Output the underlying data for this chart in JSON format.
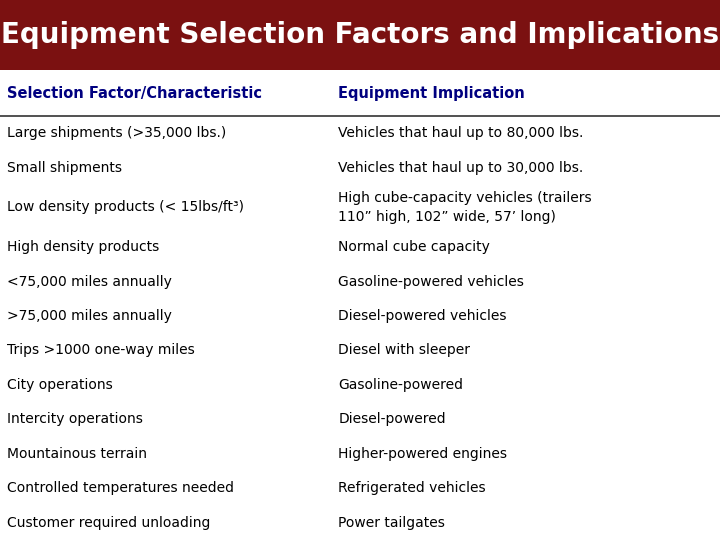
{
  "title": "Equipment Selection Factors and Implications",
  "title_bg": "#7B1111",
  "title_color": "#FFFFFF",
  "header_col1": "Selection Factor/Characteristic",
  "header_col2": "Equipment Implication",
  "header_color": "#000080",
  "rows": [
    [
      "Large shipments (>35,000 lbs.)",
      "Vehicles that haul up to 80,000 lbs."
    ],
    [
      "Small shipments",
      "Vehicles that haul up to 30,000 lbs."
    ],
    [
      "Low density products (< 15lbs/ft³)",
      "High cube-capacity vehicles (trailers\n110” high, 102” wide, 57’ long)"
    ],
    [
      "High density products",
      "Normal cube capacity"
    ],
    [
      "<75,000 miles annually",
      "Gasoline-powered vehicles"
    ],
    [
      ">75,000 miles annually",
      "Diesel-powered vehicles"
    ],
    [
      "Trips >1000 one-way miles",
      "Diesel with sleeper"
    ],
    [
      "City operations",
      "Gasoline-powered"
    ],
    [
      "Intercity operations",
      "Diesel-powered"
    ],
    [
      "Mountainous terrain",
      "Higher-powered engines"
    ],
    [
      "Controlled temperatures needed",
      "Refrigerated vehicles"
    ],
    [
      "Customer required unloading",
      "Power tailgates"
    ]
  ],
  "text_color": "#000000",
  "line_color": "#333333",
  "figsize": [
    7.2,
    5.4
  ],
  "dpi": 100
}
